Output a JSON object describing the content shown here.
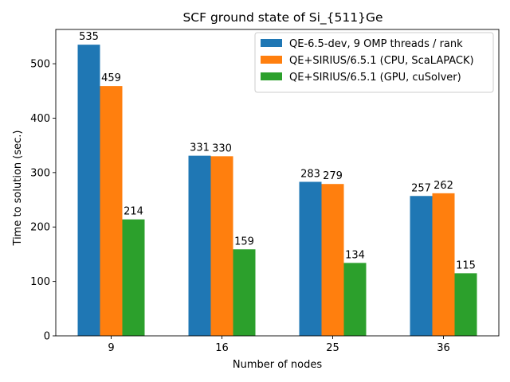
{
  "chart_data": {
    "type": "bar",
    "title": "SCF ground state of Si_{511}Ge",
    "xlabel": "Number of nodes",
    "ylabel": "Time to solution (sec.)",
    "categories": [
      "9",
      "16",
      "25",
      "36"
    ],
    "ylim": [
      0,
      563
    ],
    "yticks": [
      0,
      100,
      200,
      300,
      400,
      500
    ],
    "grid": false,
    "legend_position": "top-right",
    "series": [
      {
        "name": "QE-6.5-dev, 9 OMP threads / rank",
        "color": "#1f77b4",
        "values": [
          535,
          331,
          283,
          257
        ]
      },
      {
        "name": "QE+SIRIUS/6.5.1 (CPU, ScaLAPACK)",
        "color": "#ff7f0e",
        "values": [
          459,
          330,
          279,
          262
        ]
      },
      {
        "name": "QE+SIRIUS/6.5.1 (GPU, cuSolver)",
        "color": "#2ca02c",
        "values": [
          214,
          159,
          134,
          115
        ]
      }
    ]
  }
}
